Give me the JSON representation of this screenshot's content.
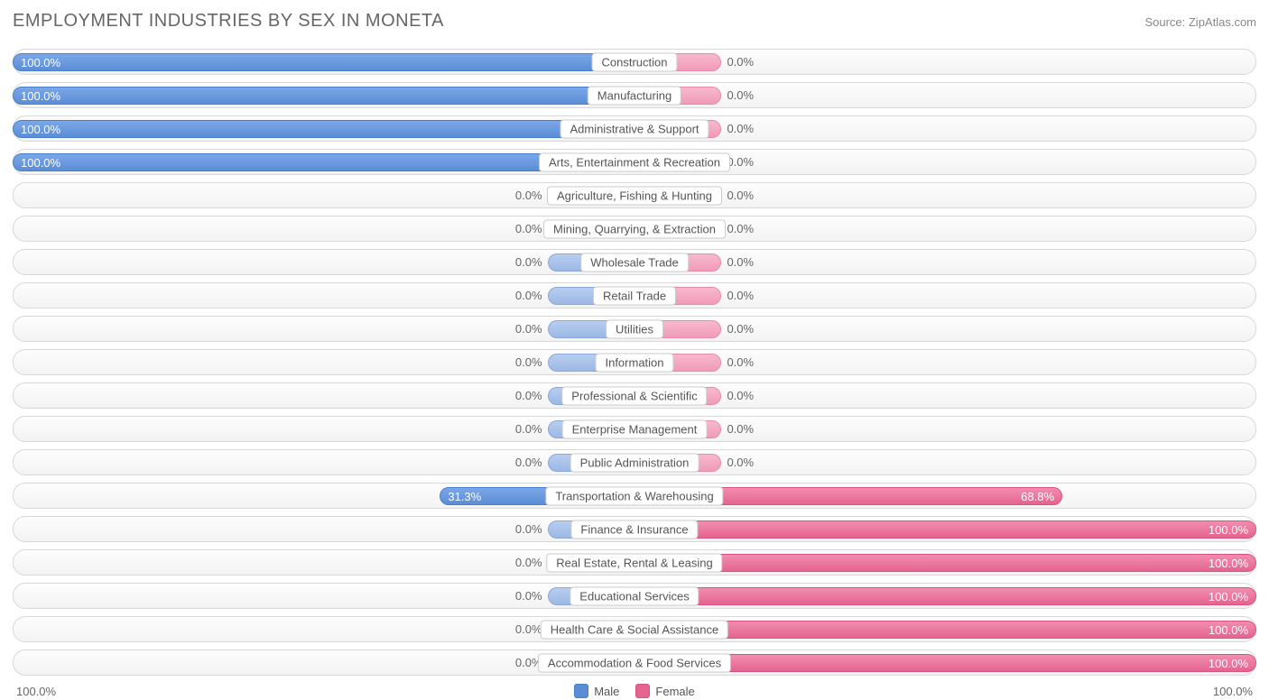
{
  "title": "EMPLOYMENT INDUSTRIES BY SEX IN MONETA",
  "source": "Source: ZipAtlas.com",
  "axis_left": "100.0%",
  "axis_right": "100.0%",
  "legend": {
    "male": "Male",
    "female": "Female"
  },
  "chart": {
    "type": "diverging-bar",
    "background_color": "#ffffff",
    "track_border": "#d8d8d8",
    "male_strong": "#5b8dd6",
    "male_faded": "#9bb8e4",
    "female_strong": "#e4648f",
    "female_faded": "#f09bb8",
    "text_color": "#666666",
    "label_bg": "#ffffff",
    "label_border": "#cccccc",
    "min_stub_pct": 14,
    "rows": [
      {
        "label": "Construction",
        "male": 100.0,
        "female": 0.0
      },
      {
        "label": "Manufacturing",
        "male": 100.0,
        "female": 0.0
      },
      {
        "label": "Administrative & Support",
        "male": 100.0,
        "female": 0.0
      },
      {
        "label": "Arts, Entertainment & Recreation",
        "male": 100.0,
        "female": 0.0
      },
      {
        "label": "Agriculture, Fishing & Hunting",
        "male": 0.0,
        "female": 0.0
      },
      {
        "label": "Mining, Quarrying, & Extraction",
        "male": 0.0,
        "female": 0.0
      },
      {
        "label": "Wholesale Trade",
        "male": 0.0,
        "female": 0.0
      },
      {
        "label": "Retail Trade",
        "male": 0.0,
        "female": 0.0
      },
      {
        "label": "Utilities",
        "male": 0.0,
        "female": 0.0
      },
      {
        "label": "Information",
        "male": 0.0,
        "female": 0.0
      },
      {
        "label": "Professional & Scientific",
        "male": 0.0,
        "female": 0.0
      },
      {
        "label": "Enterprise Management",
        "male": 0.0,
        "female": 0.0
      },
      {
        "label": "Public Administration",
        "male": 0.0,
        "female": 0.0
      },
      {
        "label": "Transportation & Warehousing",
        "male": 31.3,
        "female": 68.8
      },
      {
        "label": "Finance & Insurance",
        "male": 0.0,
        "female": 100.0
      },
      {
        "label": "Real Estate, Rental & Leasing",
        "male": 0.0,
        "female": 100.0
      },
      {
        "label": "Educational Services",
        "male": 0.0,
        "female": 100.0
      },
      {
        "label": "Health Care & Social Assistance",
        "male": 0.0,
        "female": 100.0
      },
      {
        "label": "Accommodation & Food Services",
        "male": 0.0,
        "female": 100.0
      }
    ]
  }
}
